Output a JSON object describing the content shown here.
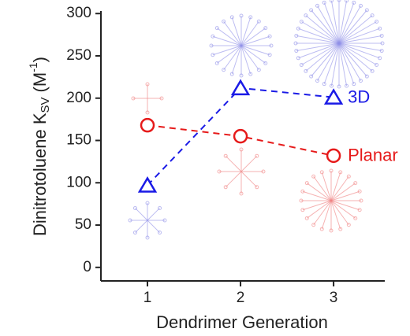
{
  "chart_data": {
    "type": "line",
    "x_label": "Dendrimer Generation",
    "y_label": {
      "text": "Dinitrotoluene K",
      "subscript": "SV",
      "unit": "(M",
      "superscript": "-1",
      "close": ")"
    },
    "x": [
      1,
      2,
      3
    ],
    "xlim": [
      0.5,
      3.55
    ],
    "xticks": [
      1,
      2,
      3
    ],
    "ylim": [
      -16,
      303
    ],
    "yticks": [
      0,
      50,
      100,
      150,
      200,
      250,
      300
    ],
    "series": [
      {
        "name": "3D",
        "color": "#1a1ae6",
        "marker": "triangle",
        "values": [
          97,
          212,
          201
        ]
      },
      {
        "name": "Planar",
        "color": "#e61a1a",
        "marker": "circle",
        "values": [
          168,
          155,
          132
        ]
      }
    ]
  }
}
